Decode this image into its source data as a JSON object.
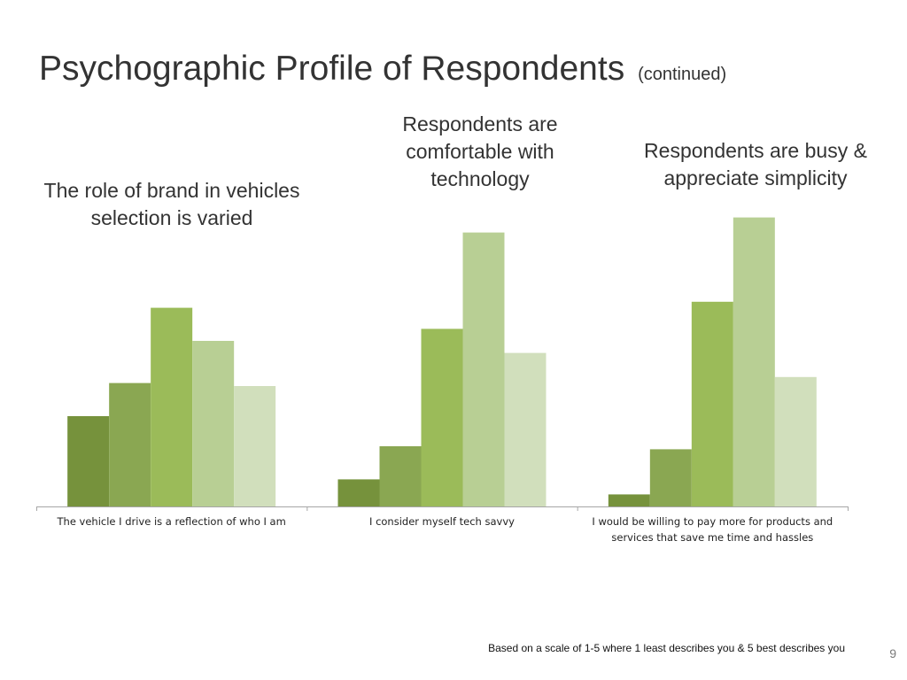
{
  "slide": {
    "title": "Psychographic Profile of Respondents",
    "title_suffix": "(continued)",
    "footnote": "Based on a scale of 1-5 where 1 least describes you & 5 best describes you",
    "page_number": "9"
  },
  "captions": [
    {
      "id": "brand",
      "text": "The role of brand in vehicles selection is varied"
    },
    {
      "id": "tech",
      "text": "Respondents are comfortable with technology"
    },
    {
      "id": "busy",
      "text": "Respondents are busy & appreciate simplicity"
    }
  ],
  "chart_data": {
    "type": "bar",
    "title": "",
    "xlabel": "",
    "ylabel": "",
    "categories": [
      "The vehicle I drive is a reflection of who I am",
      "I consider myself tech savvy",
      "I would be willing to pay more for products and services that save me time and hassles"
    ],
    "series": [
      {
        "color": "#76923c",
        "values": [
          30,
          9,
          4
        ]
      },
      {
        "color": "#8aa752",
        "values": [
          41,
          20,
          19
        ]
      },
      {
        "color": "#9bbb59",
        "values": [
          66,
          59,
          68
        ]
      },
      {
        "color": "#b8cf94",
        "values": [
          55,
          91,
          96
        ]
      },
      {
        "color": "#d1dfbc",
        "values": [
          40,
          51,
          43
        ]
      }
    ],
    "ylim": [
      0,
      100
    ],
    "grid": false,
    "legend": "none"
  }
}
